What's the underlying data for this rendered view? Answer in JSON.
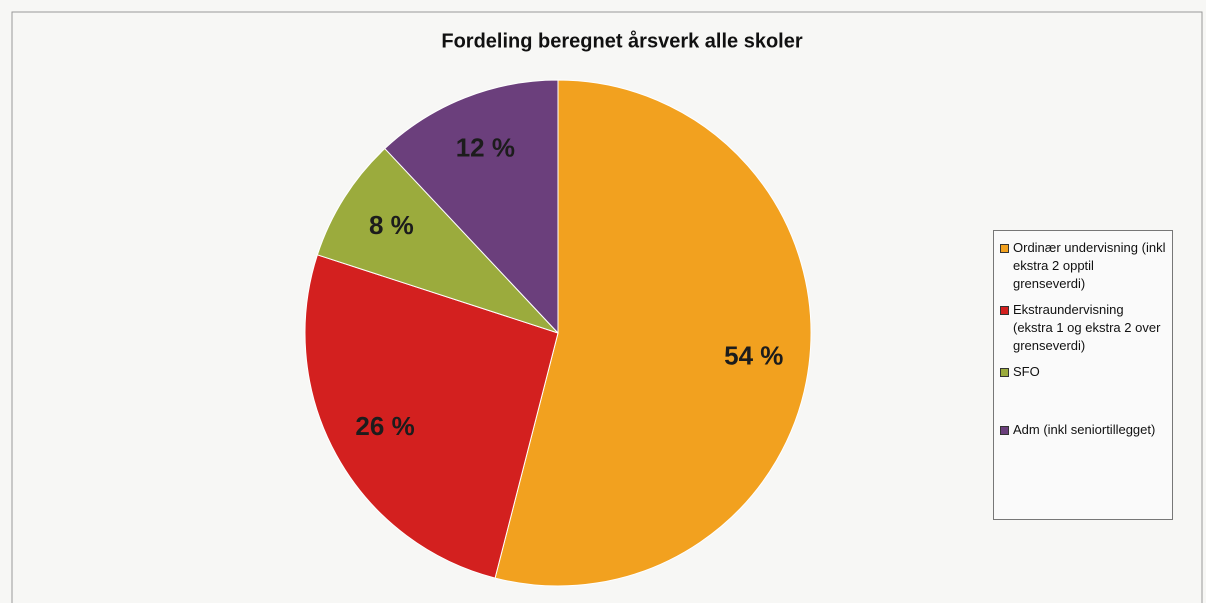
{
  "chart_data": {
    "type": "pie",
    "title": "Fordeling beregnet årsverk alle skoler",
    "categories": [
      "Ordinær undervisning (inkl ekstra 2 opptil grenseverdi)",
      "Ekstraundervisning (ekstra 1 og ekstra 2 over grenseverdi)",
      "SFO",
      "Adm (inkl seniortillegget)"
    ],
    "values": [
      54,
      26,
      8,
      12
    ],
    "value_labels": [
      "54 %",
      "26 %",
      "8 %",
      "12 %"
    ],
    "colors": [
      "#f2a11f",
      "#d3201f",
      "#9bab3d",
      "#6b3f7c"
    ],
    "legend": "right"
  }
}
